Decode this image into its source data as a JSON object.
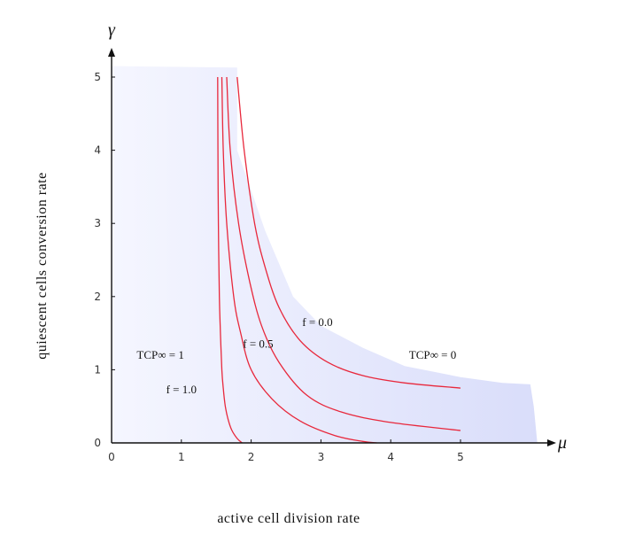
{
  "chart_data": {
    "type": "line",
    "title": "",
    "xlabel": "active  cell  division  rate",
    "ylabel": "quiescent  cells  conversion  rate",
    "x_symbol": "μ",
    "y_symbol": "γ",
    "xlim": [
      0,
      6.2
    ],
    "ylim": [
      0,
      5.3
    ],
    "x_ticks": [
      "0",
      "1",
      "2",
      "3",
      "4",
      "5"
    ],
    "y_ticks": [
      "0",
      "1",
      "2",
      "3",
      "4",
      "5"
    ],
    "grid": false,
    "colors": {
      "curves": "#e8283c",
      "region": "#dde1fb",
      "axis": "#111111"
    },
    "region_labels": [
      {
        "text": "TCP∞ = 1",
        "x": 0.7,
        "y": 1.15
      },
      {
        "text": "TCP∞ = 0",
        "x": 4.6,
        "y": 1.15
      }
    ],
    "series": [
      {
        "name": "f = 1.0",
        "label_at": [
          1.0,
          0.68
        ],
        "x": [
          1.52,
          1.524,
          1.53,
          1.545,
          1.56,
          1.58,
          1.6,
          1.63,
          1.67,
          1.72,
          1.8,
          1.87
        ],
        "y": [
          5.0,
          4.0,
          3.0,
          2.0,
          1.5,
          1.0,
          0.75,
          0.5,
          0.32,
          0.18,
          0.06,
          0.0
        ]
      },
      {
        "name": "f = 0.5",
        "label_at": [
          2.1,
          1.3
        ],
        "x": [
          1.58,
          1.6,
          1.65,
          1.75,
          1.85,
          2.0,
          2.3,
          2.7,
          3.2,
          3.6,
          3.8
        ],
        "y": [
          5.0,
          4.0,
          3.0,
          2.0,
          1.5,
          1.0,
          0.6,
          0.3,
          0.1,
          0.02,
          0.0
        ]
      },
      {
        "name": "",
        "x": [
          1.65,
          1.7,
          1.82,
          1.98,
          2.15,
          2.4,
          2.8,
          3.3,
          4.0,
          5.0
        ],
        "y": [
          5.0,
          4.0,
          3.0,
          2.2,
          1.6,
          1.1,
          0.65,
          0.42,
          0.28,
          0.17
        ]
      },
      {
        "name": "f = 0.0",
        "label_at": [
          2.95,
          1.6
        ],
        "x": [
          1.8,
          1.9,
          2.05,
          2.2,
          2.4,
          2.7,
          3.1,
          3.6,
          4.2,
          5.0
        ],
        "y": [
          5.0,
          4.0,
          3.0,
          2.4,
          1.85,
          1.4,
          1.1,
          0.92,
          0.82,
          0.75
        ]
      }
    ],
    "shaded_region": {
      "label": "",
      "x": [
        0,
        1.8,
        1.8,
        2.2,
        2.6,
        3.0,
        3.6,
        4.2,
        5.0,
        5.6,
        6.0,
        6.05,
        6.1,
        0
      ],
      "y": [
        5.15,
        5.13,
        4.0,
        2.9,
        2.0,
        1.6,
        1.3,
        1.05,
        0.9,
        0.82,
        0.8,
        0.5,
        0.0,
        0.0
      ]
    }
  }
}
